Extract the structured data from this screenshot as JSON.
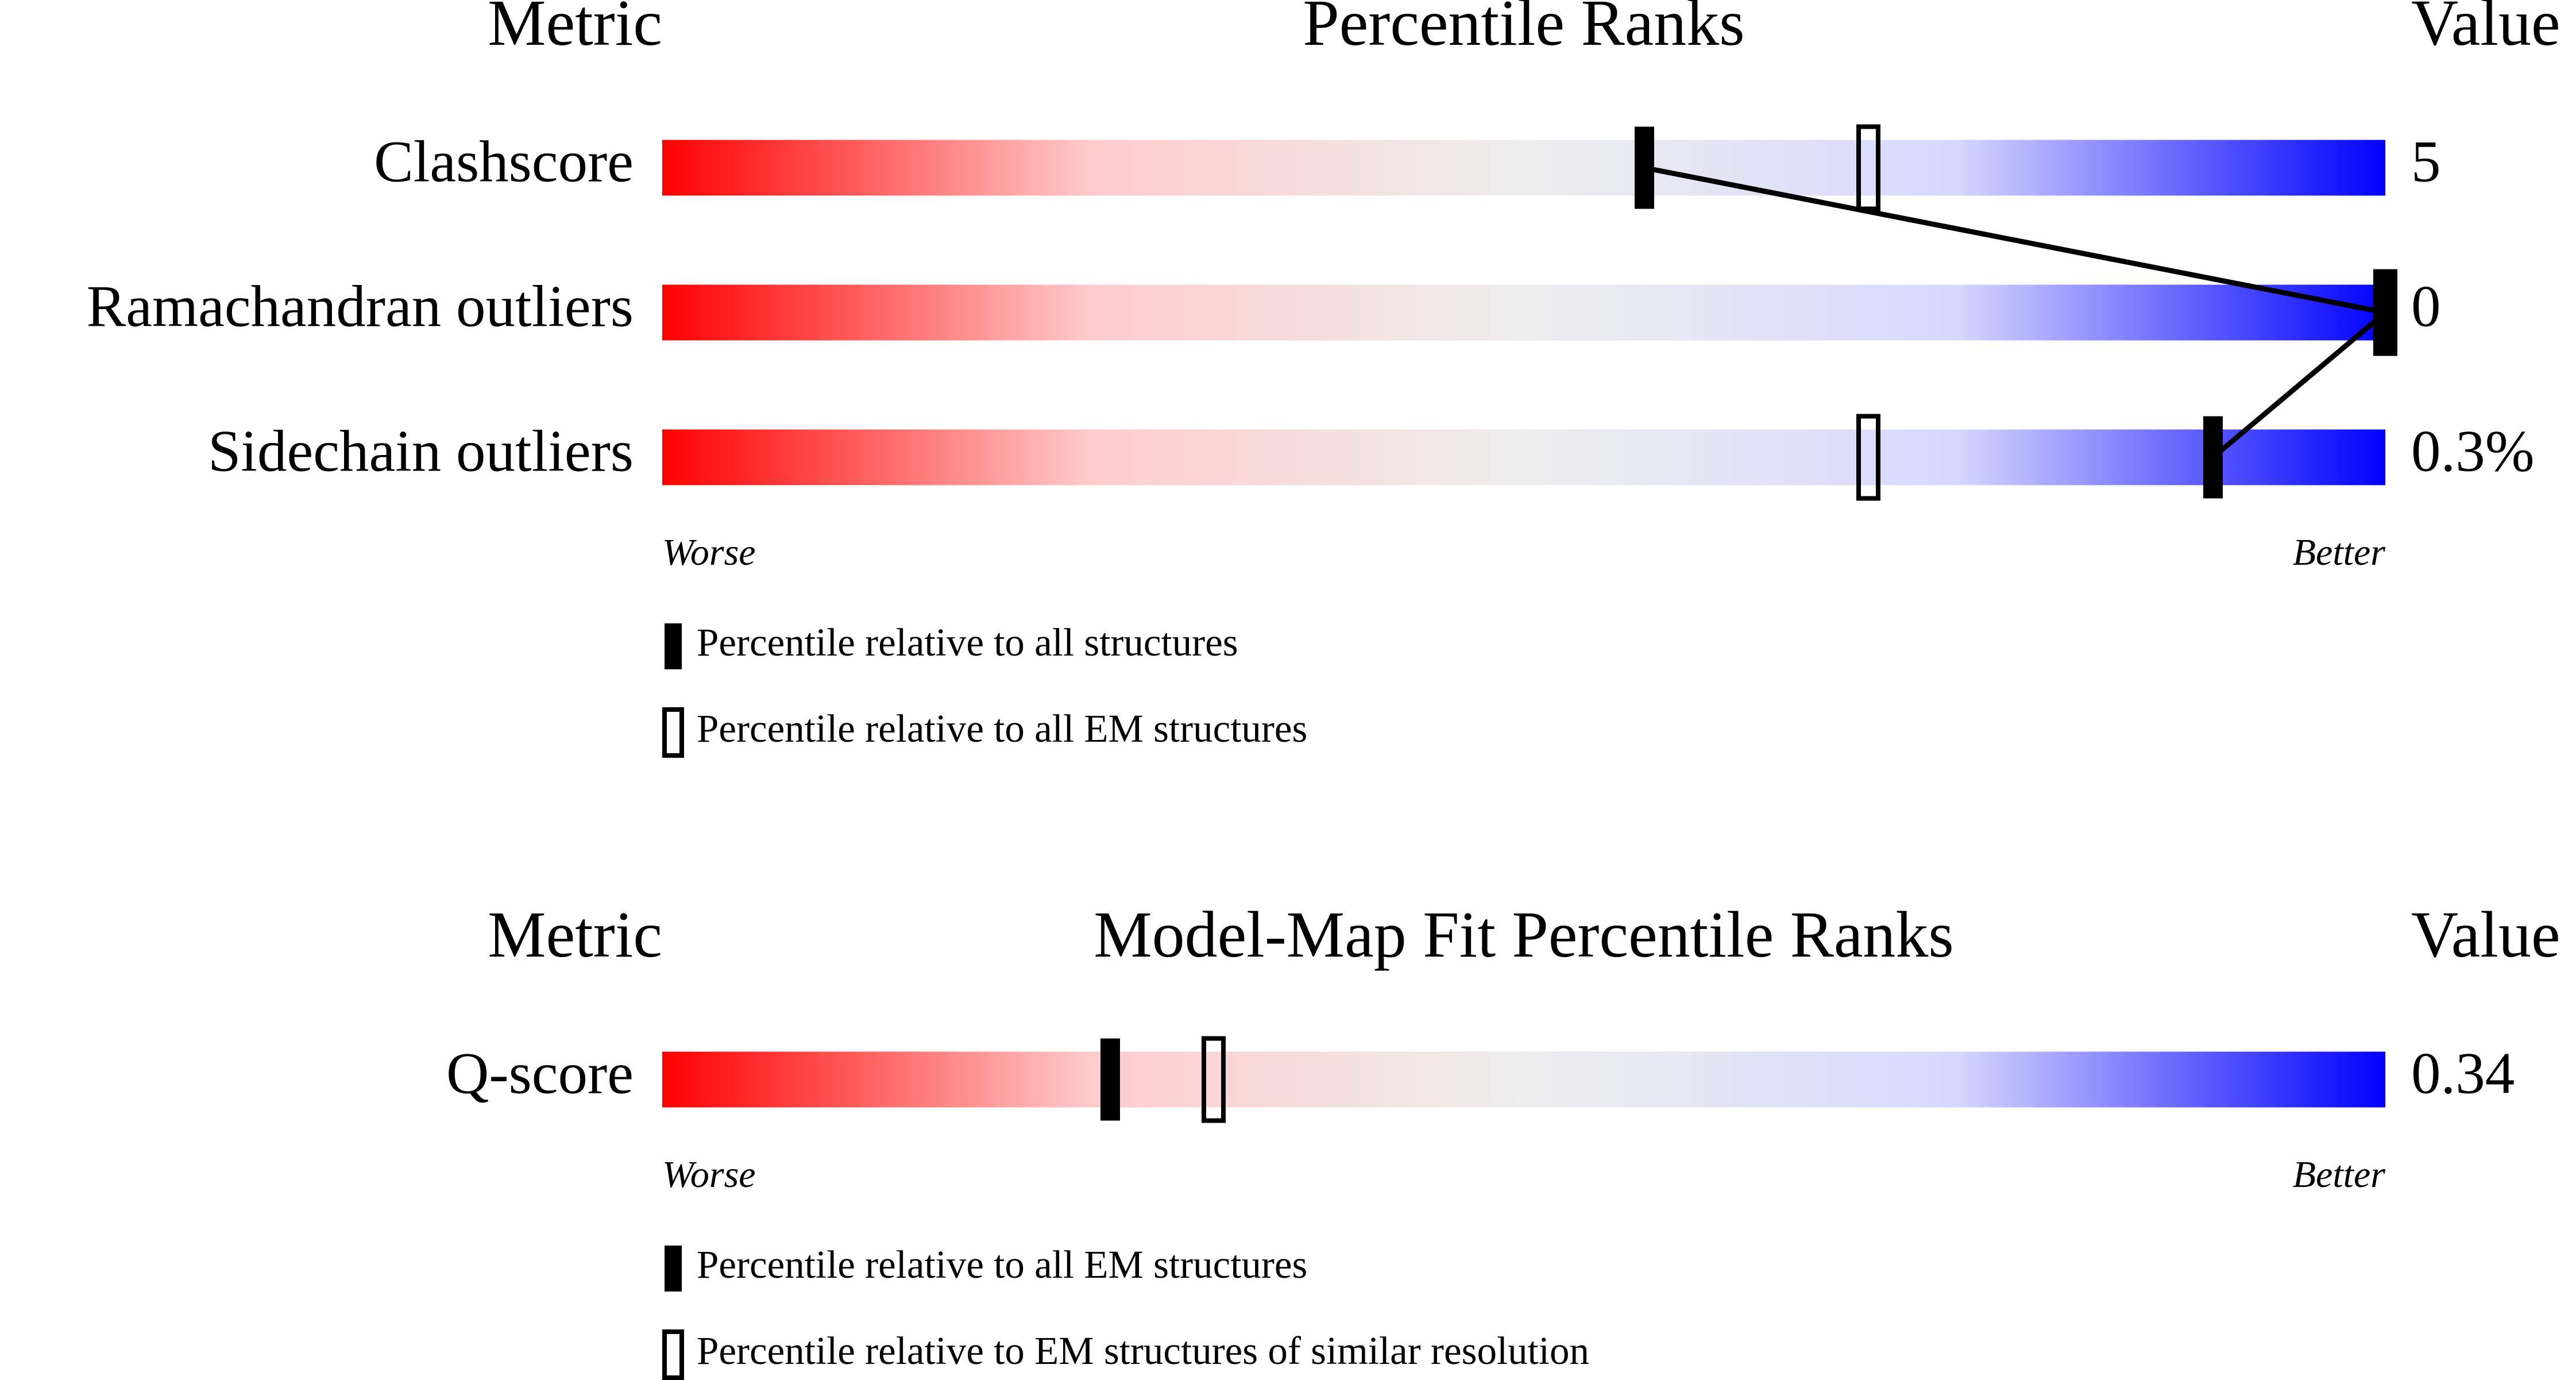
{
  "chart_data": [
    {
      "type": "percentile",
      "headers": [
        "Metric",
        "Percentile Ranks",
        "Value"
      ],
      "categories": [
        "Clashscore",
        "Ramachandran outliers",
        "Sidechain outliers"
      ],
      "series": [
        {
          "name": "Percentile relative to all structures",
          "style": "filled",
          "color": "#000000",
          "values": [
            57,
            100,
            90
          ]
        },
        {
          "name": "Percentile relative to all EM structures",
          "style": "open",
          "color": "#000000",
          "values": [
            70,
            100,
            70
          ]
        }
      ],
      "value_texts": [
        "5",
        "0",
        "0.3%"
      ],
      "xlim": [
        0,
        100
      ],
      "scale_labels": [
        "Worse",
        "Better"
      ],
      "gradient": [
        "#ff0000",
        "#ffcccc",
        "#eeeeee",
        "#d8d8ff",
        "#0000ff"
      ],
      "connect_filled": true
    },
    {
      "type": "percentile",
      "headers": [
        "Metric",
        "Model-Map Fit Percentile Ranks",
        "Value"
      ],
      "categories": [
        "Q-score"
      ],
      "series": [
        {
          "name": "Percentile relative to all EM structures",
          "style": "filled",
          "color": "#000000",
          "values": [
            26
          ]
        },
        {
          "name": "Percentile relative to EM structures of similar resolution",
          "style": "open",
          "color": "#000000",
          "values": [
            32
          ]
        }
      ],
      "value_texts": [
        "0.34"
      ],
      "xlim": [
        0,
        100
      ],
      "scale_labels": [
        "Worse",
        "Better"
      ],
      "gradient": [
        "#ff0000",
        "#ffcccc",
        "#eeeeee",
        "#d8d8ff",
        "#0000ff"
      ],
      "connect_filled": false
    }
  ]
}
